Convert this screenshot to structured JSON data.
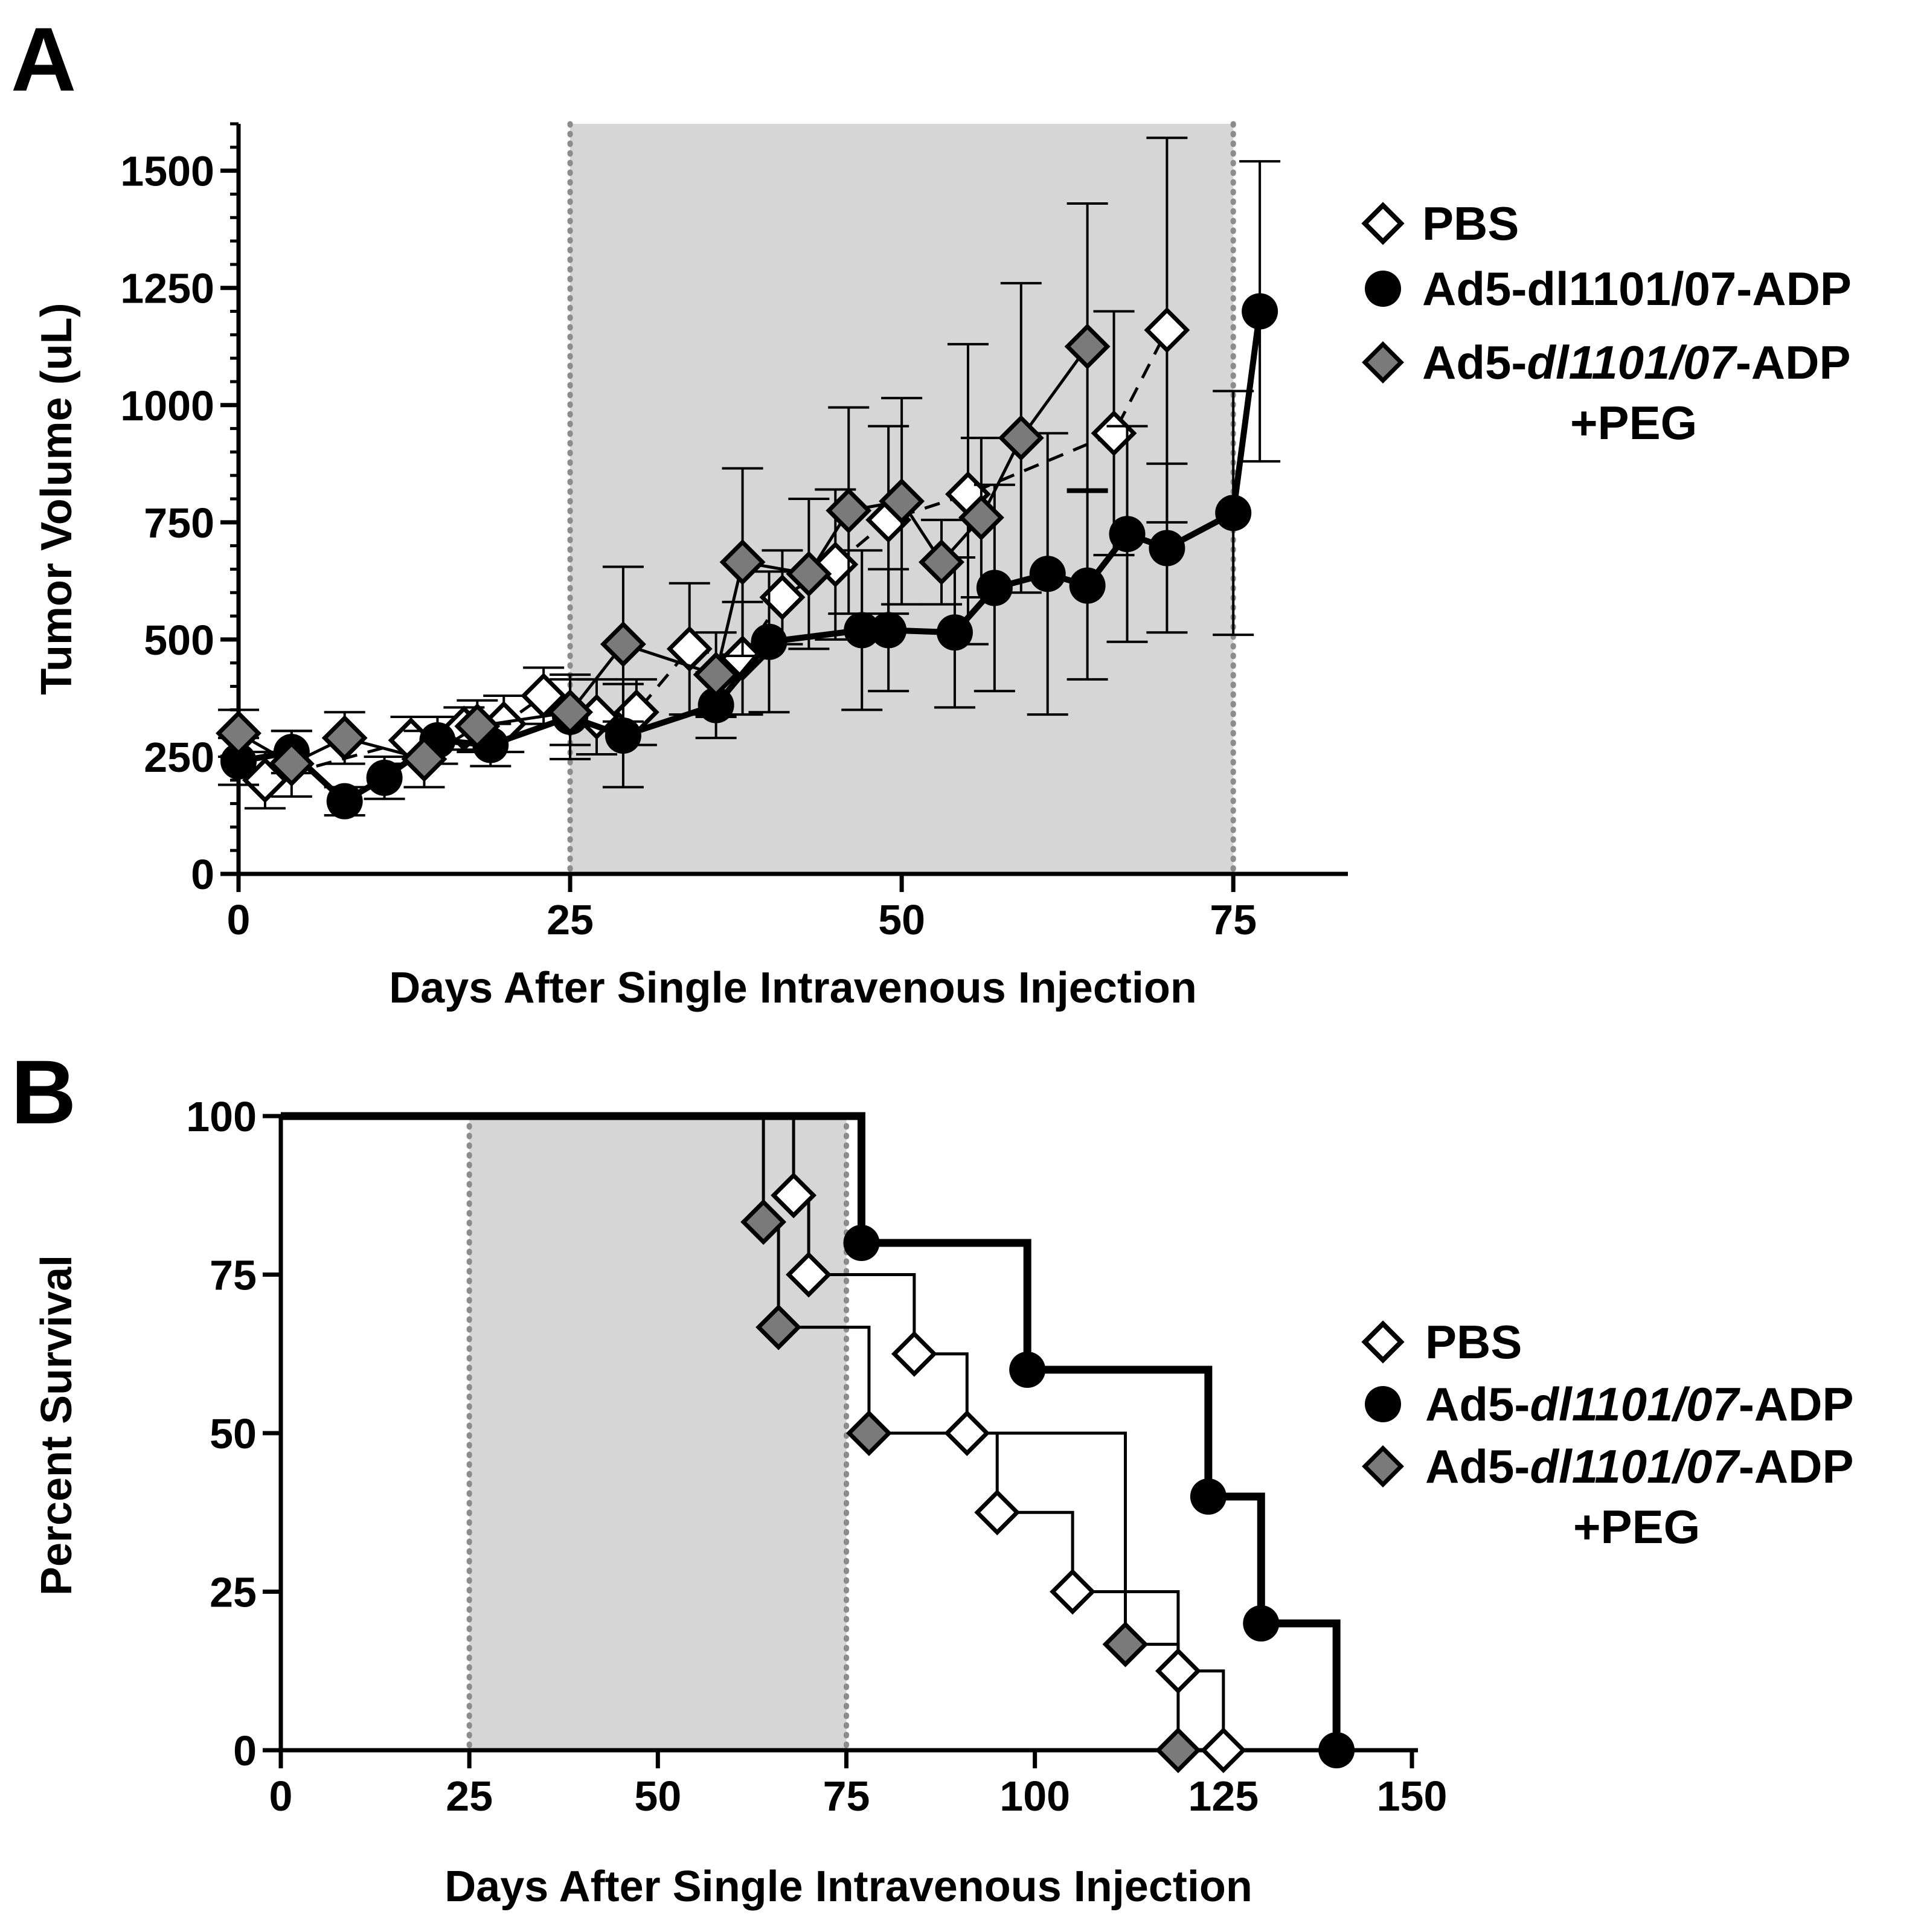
{
  "figure": {
    "panels": [
      "A",
      "B"
    ]
  },
  "legend_A": {
    "items": [
      {
        "label": "PBS",
        "marker": "diamond-open"
      },
      {
        "label": "Ad5-dl1101/07-ADP",
        "marker": "circle-filled"
      },
      {
        "label_prefix": "Ad5-",
        "label_italic": "dl1101/07",
        "label_suffix": "-ADP",
        "label_line2": "+PEG",
        "marker": "diamond-gray"
      }
    ]
  },
  "legend_B": {
    "items": [
      {
        "label": "PBS",
        "marker": "diamond-open"
      },
      {
        "label_prefix": "Ad5-",
        "label_italic": "dl1101/07",
        "label_suffix": "-ADP",
        "marker": "circle-filled"
      },
      {
        "label_prefix": "Ad5-",
        "label_italic": "dl1101/07",
        "label_suffix": "-ADP",
        "label_line2": "+PEG",
        "marker": "diamond-gray"
      }
    ]
  },
  "colors": {
    "shade": "#d6d6d6",
    "dotted": "#8c8c8c",
    "gray_marker": "#7a7a7a",
    "black": "#000000",
    "white": "#ffffff"
  },
  "chart_data": [
    {
      "panel": "A",
      "type": "line",
      "xlabel": "Days After Single Intravenous Injection",
      "ylabel": "Tumor Volume (uL)",
      "xlim": [
        0,
        80
      ],
      "ylim": [
        0,
        1600
      ],
      "xticks": [
        0,
        25,
        50,
        75
      ],
      "yticks": [
        0,
        250,
        500,
        750,
        1000,
        1250,
        1500
      ],
      "shaded_region": [
        25,
        75
      ],
      "series": [
        {
          "name": "PBS",
          "marker": "diamond-open",
          "dash": true,
          "x": [
            2,
            13,
            17,
            20,
            23,
            27,
            30,
            34,
            38,
            41,
            45,
            49,
            55,
            66,
            70
          ],
          "y": [
            200,
            285,
            310,
            320,
            380,
            335,
            345,
            480,
            460,
            590,
            660,
            755,
            810,
            940,
            1160
          ],
          "err": [
            60,
            50,
            45,
            60,
            60,
            80,
            70,
            140,
            120,
            100,
            160,
            200,
            320,
            260,
            410
          ]
        },
        {
          "name": "Ad5-dl1101/07-ADP",
          "marker": "circle-filled",
          "dash": false,
          "x": [
            0,
            4,
            8,
            11,
            15,
            19,
            25,
            29,
            36,
            40,
            47,
            49,
            54,
            57,
            61,
            64,
            67,
            70,
            75,
            77
          ],
          "y": [
            240,
            260,
            155,
            205,
            285,
            275,
            335,
            295,
            360,
            495,
            520,
            520,
            515,
            610,
            640,
            615,
            725,
            695,
            770,
            1200
          ],
          "err": [
            50,
            45,
            30,
            45,
            50,
            45,
            90,
            110,
            70,
            150,
            170,
            130,
            160,
            220,
            300,
            200,
            230,
            180,
            260,
            320
          ]
        },
        {
          "name": "Ad5-dl1101/07-ADP +PEG",
          "marker": "diamond-gray",
          "dash": false,
          "x": [
            0,
            4,
            8,
            14,
            18,
            25,
            29,
            36,
            38,
            43,
            46,
            50,
            53,
            56,
            59,
            64
          ],
          "y": [
            300,
            235,
            290,
            245,
            315,
            345,
            490,
            425,
            665,
            640,
            775,
            795,
            665,
            760,
            930,
            1125
          ],
          "err": [
            50,
            70,
            55,
            60,
            55,
            70,
            165,
            90,
            200,
            160,
            220,
            220,
            90,
            170,
            330,
            305
          ]
        }
      ]
    },
    {
      "panel": "B",
      "type": "line",
      "step": true,
      "xlabel": "Days After Single Intravenous Injection",
      "ylabel": "Percent Survival",
      "xlim": [
        0,
        150
      ],
      "ylim": [
        0,
        100
      ],
      "xticks": [
        0,
        25,
        50,
        75,
        100,
        125,
        150
      ],
      "yticks": [
        0,
        25,
        50,
        75,
        100
      ],
      "shaded_region": [
        25,
        75
      ],
      "series": [
        {
          "name": "PBS",
          "marker": "diamond-open",
          "stroke": "thin-outline",
          "steps": [
            [
              0,
              100
            ],
            [
              68,
              87.5
            ],
            [
              70,
              75
            ],
            [
              84,
              62.5
            ],
            [
              91,
              50
            ],
            [
              95,
              37.5
            ],
            [
              105,
              25
            ],
            [
              119,
              12.5
            ],
            [
              125,
              0
            ]
          ],
          "markers": [
            [
              68,
              87.5
            ],
            [
              70,
              75
            ],
            [
              84,
              62.5
            ],
            [
              91,
              50
            ],
            [
              95,
              37.5
            ],
            [
              105,
              25
            ],
            [
              119,
              12.5
            ],
            [
              125,
              0
            ]
          ]
        },
        {
          "name": "Ad5-dl1101/07-ADP",
          "marker": "circle-filled",
          "stroke": "thick",
          "steps": [
            [
              0,
              100
            ],
            [
              77,
              80
            ],
            [
              99,
              60
            ],
            [
              123,
              40
            ],
            [
              130,
              20
            ],
            [
              140,
              0
            ]
          ],
          "markers": [
            [
              77,
              80
            ],
            [
              99,
              60
            ],
            [
              123,
              40
            ],
            [
              130,
              20
            ],
            [
              140,
              0
            ]
          ]
        },
        {
          "name": "Ad5-dl1101/07-ADP +PEG",
          "marker": "diamond-gray",
          "stroke": "thin",
          "steps": [
            [
              0,
              100
            ],
            [
              64,
              83.3
            ],
            [
              66,
              66.7
            ],
            [
              78,
              50
            ],
            [
              112,
              16.7
            ],
            [
              119,
              0
            ]
          ],
          "markers": [
            [
              64,
              83.3
            ],
            [
              66,
              66.7
            ],
            [
              78,
              50
            ],
            [
              112,
              16.7
            ],
            [
              119,
              0
            ]
          ]
        }
      ]
    }
  ]
}
